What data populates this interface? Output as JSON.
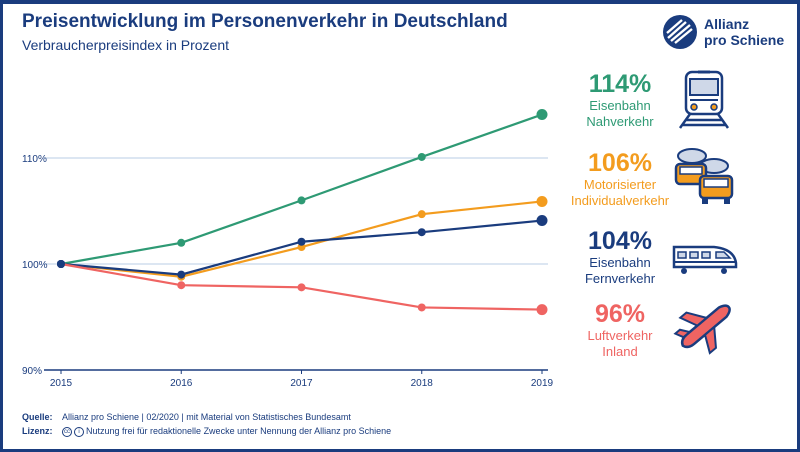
{
  "header": {
    "title": "Preisentwicklung im Personenverkehr in Deutschland",
    "subtitle": "Verbraucherpreisindex in Prozent"
  },
  "logo": {
    "line1": "Allianz",
    "line2": "pro Schiene"
  },
  "chart_data": {
    "type": "line",
    "categories": [
      "2015",
      "2016",
      "2017",
      "2018",
      "2019"
    ],
    "ylim": [
      90,
      115
    ],
    "yticks": [
      90,
      100,
      110
    ],
    "ytick_labels": [
      "90%",
      "100%",
      "110%"
    ],
    "grid": true,
    "series": [
      {
        "name": "Eisenbahn Nahverkehr",
        "color": "#2e9a74",
        "values": [
          100,
          102,
          106,
          110.1,
          114.1
        ]
      },
      {
        "name": "Motorisierter Individualverkehr",
        "color": "#f39c1e",
        "values": [
          100,
          98.8,
          101.6,
          104.7,
          105.9
        ]
      },
      {
        "name": "Eisenbahn Fernverkehr",
        "color": "#1a3c7e",
        "values": [
          100,
          99,
          102.1,
          103,
          104.1
        ]
      },
      {
        "name": "Luftverkehr Inland",
        "color": "#ef6462",
        "values": [
          100,
          98,
          97.8,
          95.9,
          95.7
        ]
      }
    ]
  },
  "legend": [
    {
      "pct": "114%",
      "line1": "Eisenbahn",
      "line2": "Nahverkehr",
      "color": "#2e9a74",
      "icon": "train-icon"
    },
    {
      "pct": "106%",
      "line1": "Motorisierter",
      "line2": "Individualverkehr",
      "color": "#f39c1e",
      "icon": "cars-icon"
    },
    {
      "pct": "104%",
      "line1": "Eisenbahn",
      "line2": "Fernverkehr",
      "color": "#1a3c7e",
      "icon": "highspeed-train-icon"
    },
    {
      "pct": "96%",
      "line1": "Luftverkehr",
      "line2": "Inland",
      "color": "#ef6462",
      "icon": "airplane-icon"
    }
  ],
  "footer": {
    "source_label": "Quelle:",
    "source_text": "Allianz pro Schiene | 02/2020 | mit Material von Statistisches Bundesamt",
    "license_label": "Lizenz:",
    "license_text": "Nutzung frei für redaktionelle Zwecke unter Nennung der Allianz pro Schiene"
  }
}
